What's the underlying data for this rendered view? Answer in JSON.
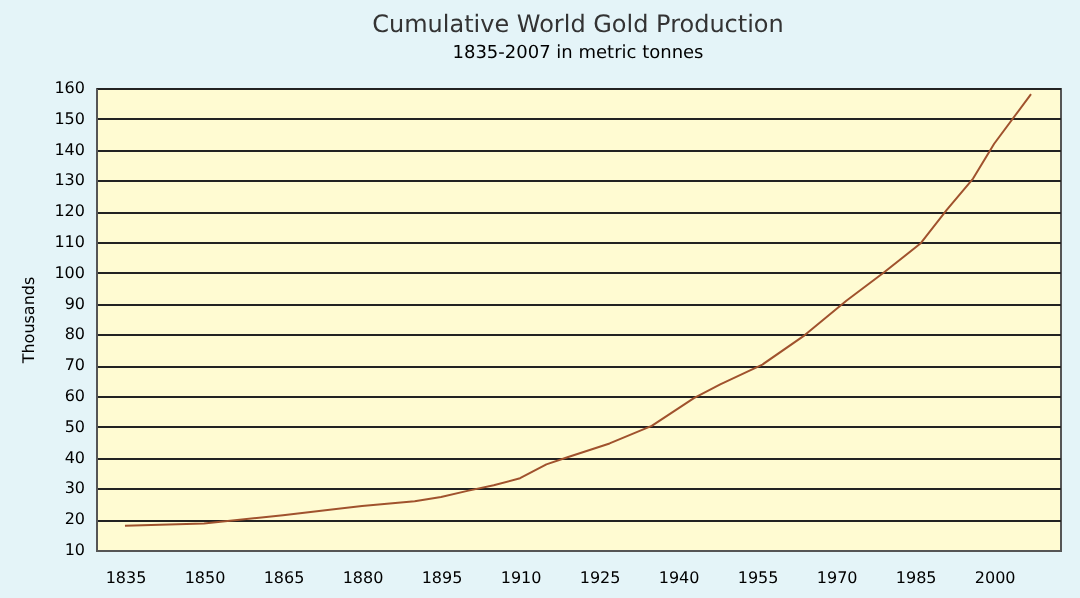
{
  "chart_data": {
    "type": "line",
    "title": "Cumulative World Gold Production",
    "subtitle": "1835-2007 in metric tonnes",
    "ylabel": "Thousands",
    "x": [
      1835,
      1850,
      1860,
      1865,
      1880,
      1890,
      1895,
      1900,
      1905,
      1910,
      1915,
      1919,
      1927,
      1935,
      1943,
      1948,
      1956,
      1964,
      1972,
      1979,
      1986,
      1991,
      1996,
      2000,
      2007
    ],
    "series": [
      {
        "color": "#a0522d",
        "values": [
          17.9,
          18.6,
          20.4,
          21.3,
          24.3,
          25.8,
          27.2,
          29.2,
          31,
          33.3,
          37.8,
          40.1,
          44.6,
          50.3,
          59.3,
          63.8,
          70.2,
          79.7,
          91,
          100,
          109.5,
          120.4,
          130.6,
          141.9,
          158
        ]
      }
    ],
    "xlim": [
      1829.5,
      2012.5
    ],
    "xticks": [
      1835,
      1850,
      1865,
      1880,
      1895,
      1910,
      1925,
      1940,
      1955,
      1970,
      1985,
      2000
    ],
    "ylim": [
      10,
      160
    ],
    "yticks": [
      10,
      20,
      30,
      40,
      50,
      60,
      70,
      80,
      90,
      100,
      110,
      120,
      130,
      140,
      150,
      160
    ],
    "grid": "y",
    "legend": false,
    "marker": "none",
    "line_style": "solid"
  }
}
